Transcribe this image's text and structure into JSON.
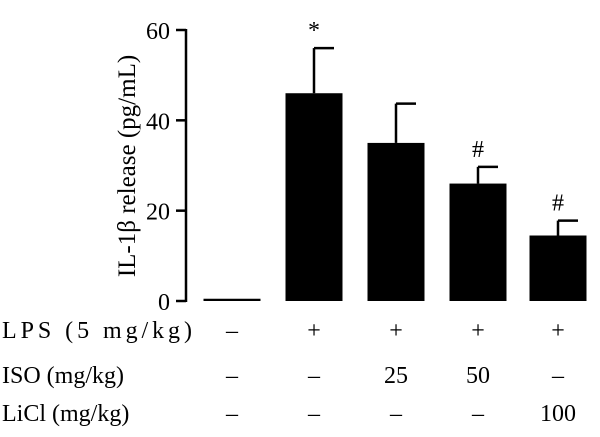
{
  "chart_data": {
    "type": "bar",
    "ylabel": "IL-1β release (pg/mL)",
    "ylim": [
      0,
      60
    ],
    "yticks": [
      "0",
      "20",
      "40",
      "60"
    ],
    "values": [
      0.5,
      46,
      35,
      26,
      14.5
    ],
    "errors": [
      0,
      10,
      8.7,
      3.7,
      3.3
    ],
    "annotations": [
      "",
      "*",
      "",
      "#",
      "#"
    ],
    "conditions": [
      {
        "label": "LPS (5 mg/kg)",
        "values": [
          "–",
          "+",
          "+",
          "+",
          "+"
        ]
      },
      {
        "label": "ISO (mg/kg)",
        "values": [
          "–",
          "–",
          "25",
          "50",
          "–"
        ]
      },
      {
        "label": "LiCl (mg/kg)",
        "values": [
          "–",
          "–",
          "–",
          "–",
          "100"
        ]
      }
    ],
    "bar_color": "#000000",
    "grid": false
  }
}
